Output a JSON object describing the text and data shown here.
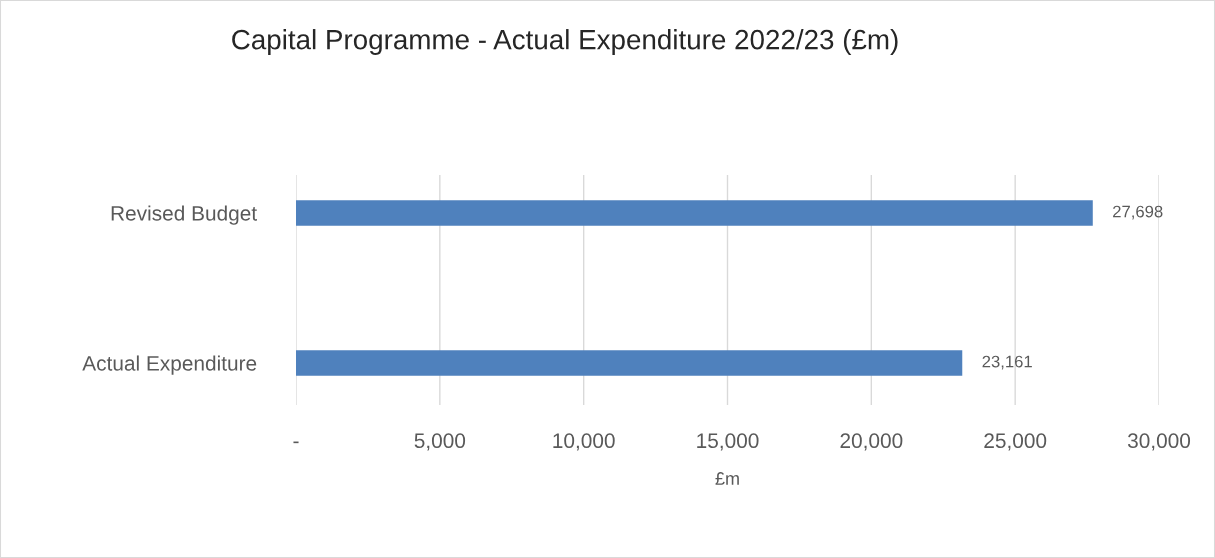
{
  "chart_data": {
    "type": "bar",
    "orientation": "horizontal",
    "title": "Capital Programme - Actual Expenditure 2022/23 (£m)",
    "xlabel": "£m",
    "categories": [
      "Revised Budget",
      "Actual Expenditure"
    ],
    "values": [
      27698,
      23161
    ],
    "color": "#4f81bd",
    "value_labels": [
      "27,698",
      "23,161"
    ],
    "xlim": [
      0,
      30000
    ],
    "xticks": [
      {
        "value": 0,
        "label": "-"
      },
      {
        "value": 5000,
        "label": "5,000"
      },
      {
        "value": 10000,
        "label": "10,000"
      },
      {
        "value": 15000,
        "label": "15,000"
      },
      {
        "value": 20000,
        "label": "20,000"
      },
      {
        "value": 25000,
        "label": "25,000"
      },
      {
        "value": 30000,
        "label": "30,000"
      }
    ],
    "grid": "x",
    "legend": false
  }
}
